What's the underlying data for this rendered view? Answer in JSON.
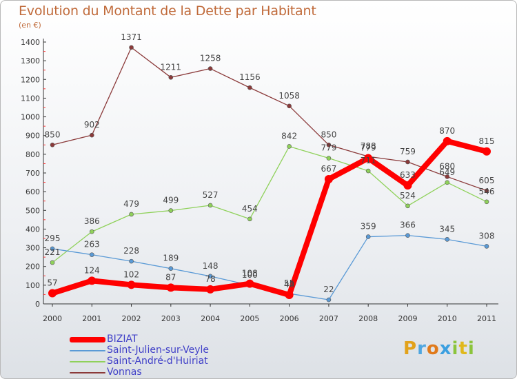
{
  "header": {
    "title": "Evolution du Montant de la Dette par Habitant",
    "unit": "(en €)"
  },
  "logo": {
    "text": "Proxiti",
    "letters": [
      {
        "ch": "P",
        "color": "#e2a21b"
      },
      {
        "ch": "r",
        "color": "#4fa6e0"
      },
      {
        "ch": "o",
        "color": "#e07a1b"
      },
      {
        "ch": "x",
        "color": "#3b9fe0"
      },
      {
        "ch": "i",
        "color": "#8bc43c"
      },
      {
        "ch": "t",
        "color": "#e0b81b"
      },
      {
        "ch": "i",
        "color": "#8bc43c"
      }
    ]
  },
  "chart_data": {
    "type": "line",
    "title": "Evolution du Montant de la Dette par Habitant",
    "ylabel": "(en €)",
    "xlabel": "",
    "x": [
      "2000",
      "2001",
      "2002",
      "2003",
      "2004",
      "2005",
      "2006",
      "2007",
      "2008",
      "2009",
      "2010",
      "2011"
    ],
    "ylim": [
      0,
      1400
    ],
    "yticks": [
      "0",
      "100",
      "200",
      "300",
      "400",
      "500",
      "600",
      "700",
      "800",
      "900",
      "1000",
      "1100",
      "1200",
      "1300",
      "1400"
    ],
    "grid": false,
    "legend_position": "bottom-left",
    "series": [
      {
        "name": "BIZIAT",
        "color": "#ff0000",
        "values": [
          57,
          124,
          102,
          87,
          78,
          108,
          48,
          667,
          779,
          633,
          870,
          815
        ],
        "labels": [
          "57",
          "124",
          "102",
          "87",
          "78",
          "108",
          "48",
          "667",
          "779",
          "633",
          "870",
          "815"
        ]
      },
      {
        "name": "Saint-Julien-sur-Veyle",
        "color": "#5a9ad6",
        "values": [
          295,
          263,
          228,
          189,
          148,
          100,
          55,
          22,
          359,
          366,
          345,
          308
        ],
        "labels": [
          "295",
          "263",
          "228",
          "189",
          "148",
          "100",
          "55",
          "22",
          "359",
          "366",
          "345",
          "308"
        ]
      },
      {
        "name": "Saint-André-d'Huiriat",
        "color": "#8fd15a",
        "values": [
          221,
          386,
          479,
          499,
          527,
          454,
          842,
          779,
          711,
          524,
          649,
          546
        ],
        "labels": [
          "221",
          "386",
          "479",
          "499",
          "527",
          "454",
          "842",
          "779",
          "711",
          "524",
          "649",
          "546"
        ]
      },
      {
        "name": "Vonnas",
        "color": "#8b3a3a",
        "values": [
          850,
          902,
          1371,
          1211,
          1258,
          1156,
          1058,
          850,
          788,
          759,
          680,
          605
        ],
        "labels": [
          "850",
          "902",
          "1371",
          "1211",
          "1258",
          "1156",
          "1058",
          "850",
          "788",
          "759",
          "680",
          "605"
        ]
      }
    ]
  }
}
